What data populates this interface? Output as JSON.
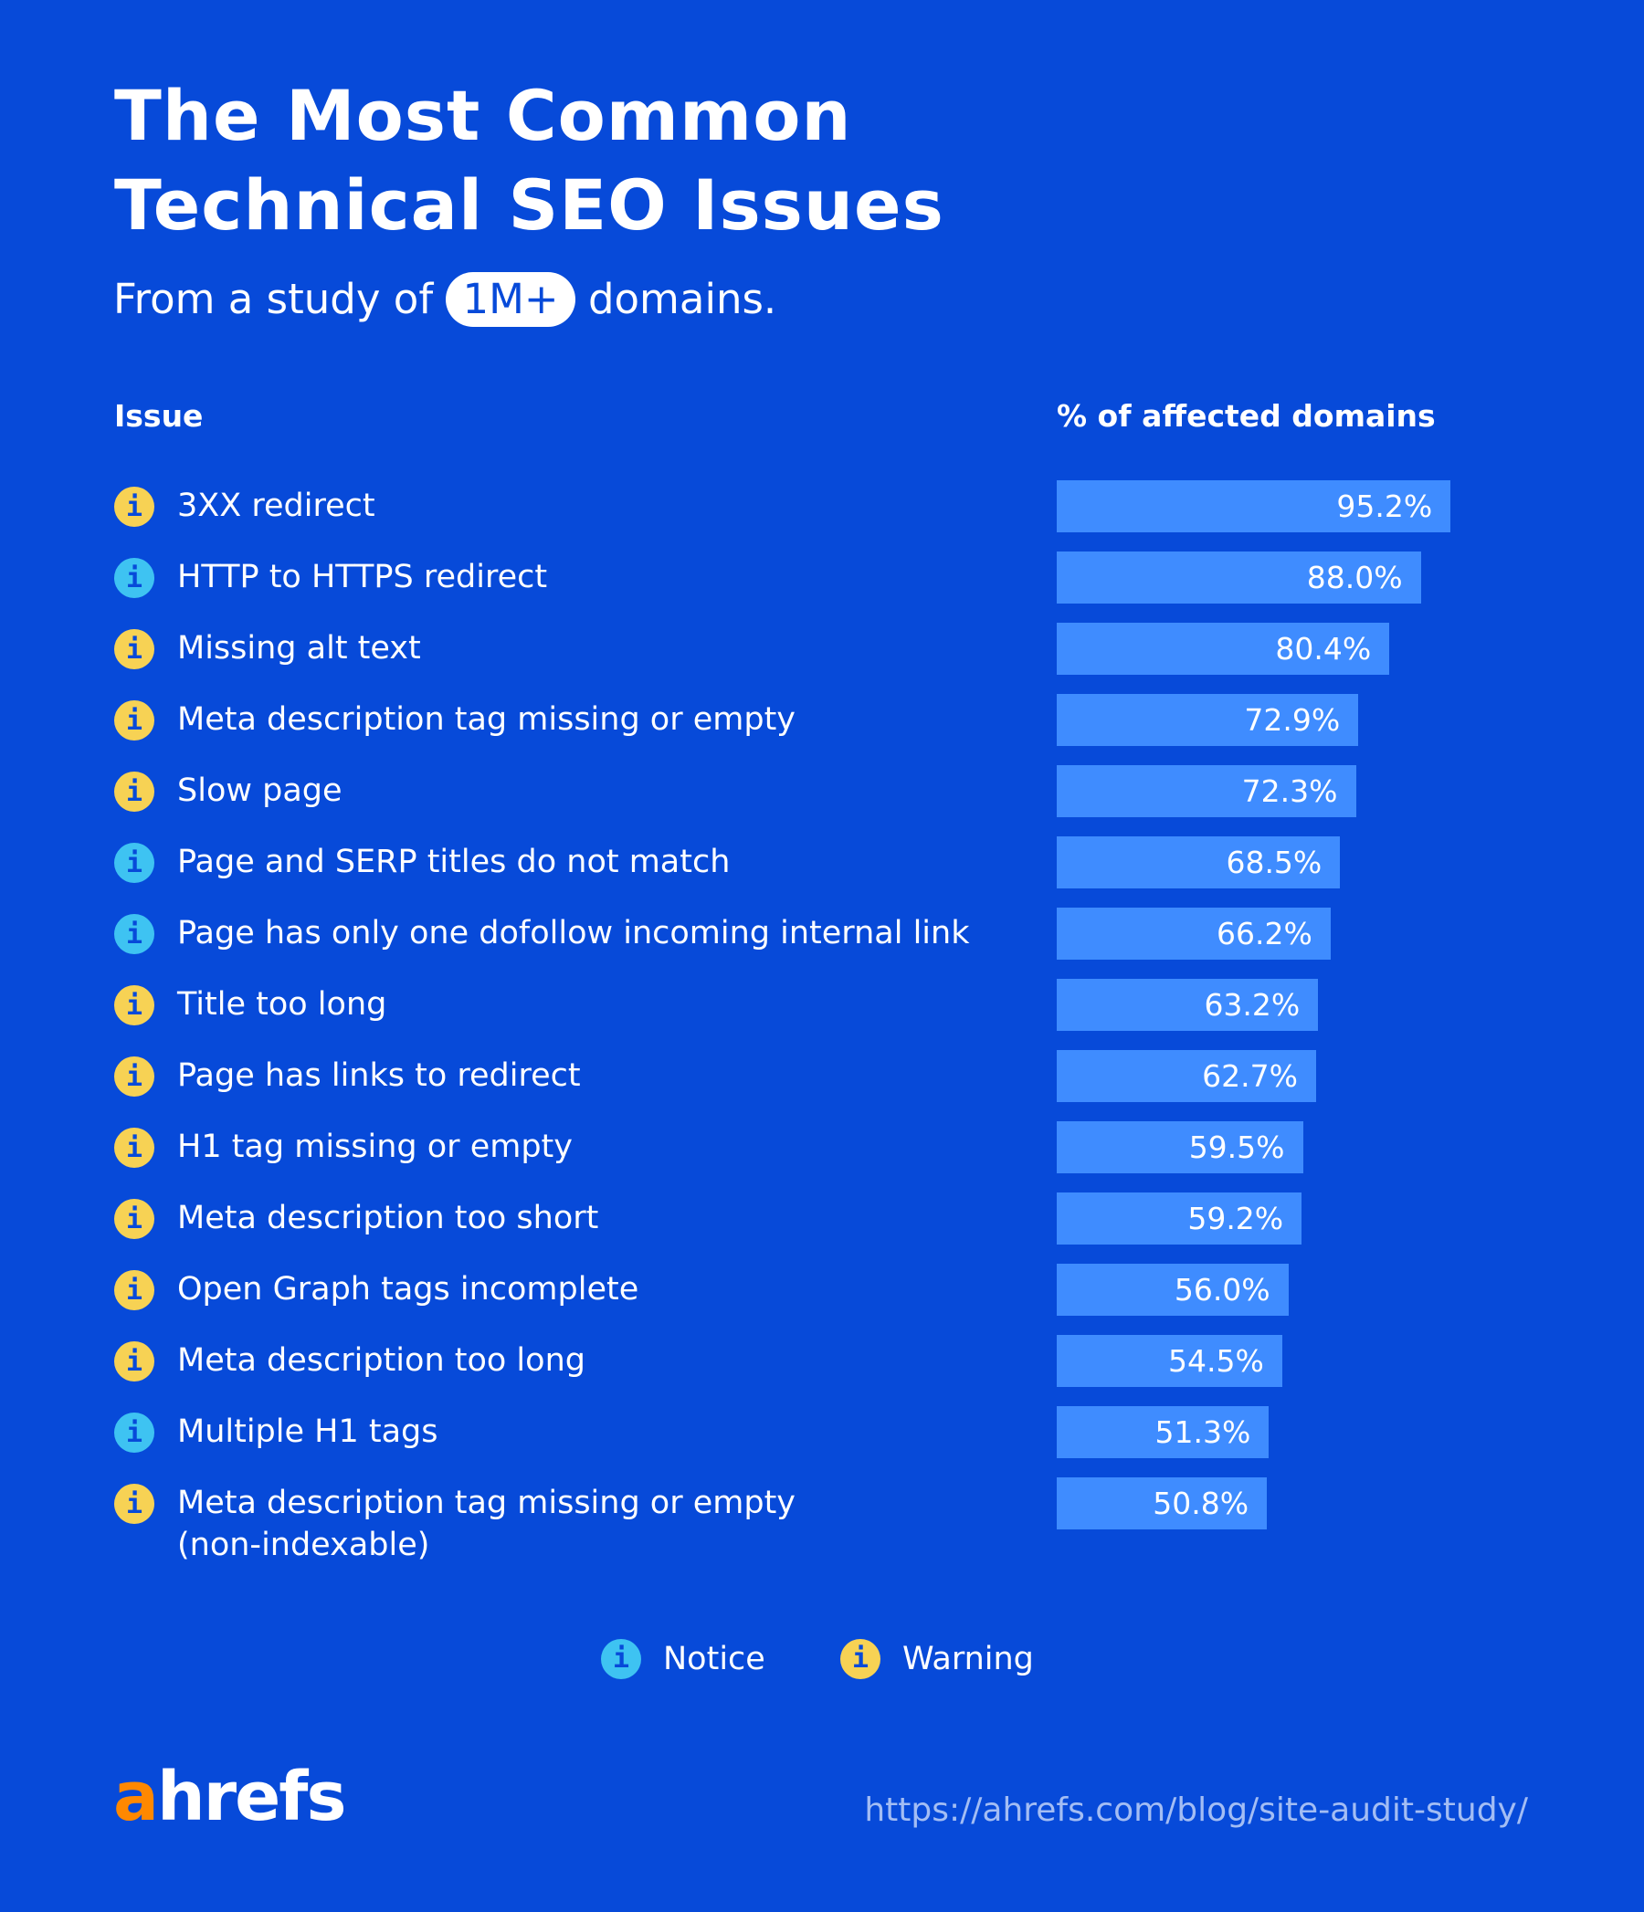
{
  "title_line1": "The Most Common",
  "title_line2": "Technical SEO Issues",
  "subtitle": {
    "before": "From a study of",
    "highlight": "1M+",
    "after": "domains."
  },
  "colors": {
    "background": "#074ad9",
    "bar": "#3f8cff",
    "notice": "#3ec3f2",
    "warning": "#f7d254",
    "logo_accent": "#ff8800"
  },
  "chart_data": {
    "type": "bar",
    "orientation": "horizontal",
    "xlabel": "% of affected domains",
    "ylabel": "Issue",
    "xlim": [
      0,
      100
    ],
    "grid": false,
    "categories": [
      "3XX redirect",
      "HTTP to HTTPS redirect",
      "Missing alt text",
      "Meta description tag missing or empty",
      "Slow page",
      "Page and SERP titles do not match",
      "Page has only one dofollow incoming internal link",
      "Title too long",
      "Page has links to redirect",
      "H1 tag missing or empty",
      "Meta description too short",
      "Open Graph tags incomplete",
      "Meta description too long",
      "Multiple H1 tags",
      "Meta description tag missing or empty (non-indexable)"
    ],
    "values": [
      95.2,
      88.0,
      80.4,
      72.9,
      72.3,
      68.5,
      66.2,
      63.2,
      62.7,
      59.5,
      59.2,
      56.0,
      54.5,
      51.3,
      50.8
    ],
    "value_labels": [
      "95.2%",
      "88.0%",
      "80.4%",
      "72.9%",
      "72.3%",
      "68.5%",
      "66.2%",
      "63.2%",
      "62.7%",
      "59.5%",
      "59.2%",
      "56.0%",
      "54.5%",
      "51.3%",
      "50.8%"
    ],
    "types": [
      "warning",
      "notice",
      "warning",
      "warning",
      "warning",
      "notice",
      "notice",
      "warning",
      "warning",
      "warning",
      "warning",
      "warning",
      "warning",
      "notice",
      "warning"
    ],
    "legend": [
      {
        "name": "Notice",
        "type": "notice"
      },
      {
        "name": "Warning",
        "type": "warning"
      }
    ],
    "legend_placement": "bottom"
  },
  "icon_glyph": "i",
  "logo": {
    "accent": "a",
    "rest": "hrefs"
  },
  "url": "https://ahrefs.com/blog/site-audit-study/"
}
